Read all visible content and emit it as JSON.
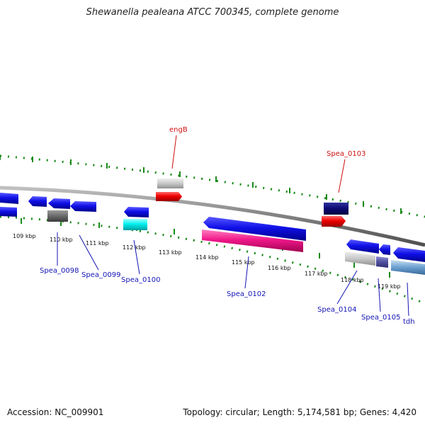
{
  "title": "Shewanella pealeana ATCC 700345, complete genome",
  "footer": {
    "accession": "Accession: NC_009901",
    "stats": "Topology: circular; Length: 5,174,581 bp; Genes: 4,420"
  },
  "colors": {
    "backbone": "#8a8a8a",
    "tick": "#1a8a1a",
    "label_blue": "#1414b4",
    "label_red": "#cc1111"
  },
  "scale_labels": [
    "109 kbp",
    "110 kbp",
    "111 kbp",
    "112 kbp",
    "113 kbp",
    "114 kbp",
    "115 kbp",
    "116 kbp",
    "117 kbp",
    "118 kbp",
    "119 kbp"
  ],
  "gene_labels": {
    "engB": "engB",
    "spea0103": "Spea_0103",
    "spea0098": "Spea_0098",
    "spea0099": "Spea_0099",
    "spea0100": "Spea_0100",
    "spea0102": "Spea_0102",
    "spea0104": "Spea_0104",
    "spea0105": "Spea_0105",
    "tdh": "tdh"
  }
}
